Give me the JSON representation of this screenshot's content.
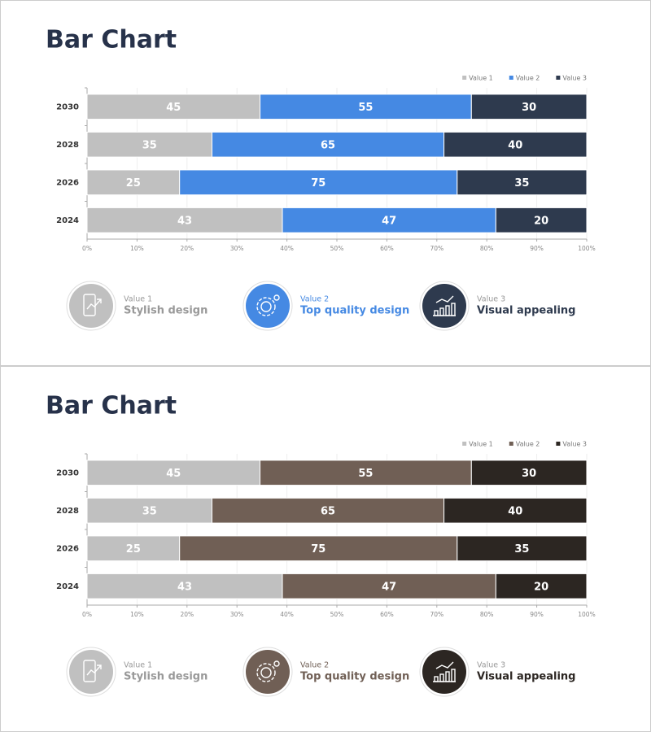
{
  "chart_data": [
    {
      "type": "bar",
      "orientation": "horizontal",
      "stacked": "percent",
      "title": "Bar Chart",
      "categories": [
        "2030",
        "2028",
        "2026",
        "2024"
      ],
      "series": [
        {
          "name": "Value 1",
          "color": "#c0c0c0",
          "values": [
            45,
            35,
            25,
            43
          ]
        },
        {
          "name": "Value 2",
          "color": "#4589e3",
          "values": [
            55,
            65,
            75,
            47
          ]
        },
        {
          "name": "Value 3",
          "color": "#2e3a4e",
          "values": [
            30,
            40,
            35,
            20
          ]
        }
      ],
      "xlim": [
        0,
        100
      ],
      "xticks": [
        {
          "value": 0,
          "label": "0%"
        },
        {
          "value": 10,
          "label": "10%"
        },
        {
          "value": 20,
          "label": "20%"
        },
        {
          "value": 30,
          "label": "30%"
        },
        {
          "value": 40,
          "label": "40%"
        },
        {
          "value": 50,
          "label": "50%"
        },
        {
          "value": 60,
          "label": "60%"
        },
        {
          "value": 70,
          "label": "70%"
        },
        {
          "value": 80,
          "label": "80%"
        },
        {
          "value": 90,
          "label": "90%"
        },
        {
          "value": 100,
          "label": "100%"
        }
      ],
      "grid": true,
      "legend": "top-right",
      "features": [
        "Stylish design",
        "Top quality design",
        "Visual appealing"
      ]
    },
    {
      "type": "bar",
      "orientation": "horizontal",
      "stacked": "percent",
      "title": "Bar Chart",
      "categories": [
        "2030",
        "2028",
        "2026",
        "2024"
      ],
      "series": [
        {
          "name": "Value 1",
          "color": "#c0c0c0",
          "values": [
            45,
            35,
            25,
            43
          ]
        },
        {
          "name": "Value 2",
          "color": "#705f55",
          "values": [
            55,
            65,
            75,
            47
          ]
        },
        {
          "name": "Value 3",
          "color": "#2c2622",
          "values": [
            30,
            40,
            35,
            20
          ]
        }
      ],
      "xlim": [
        0,
        100
      ],
      "xticks": [
        {
          "value": 0,
          "label": "0%"
        },
        {
          "value": 10,
          "label": "10%"
        },
        {
          "value": 20,
          "label": "20%"
        },
        {
          "value": 30,
          "label": "30%"
        },
        {
          "value": 40,
          "label": "40%"
        },
        {
          "value": 50,
          "label": "50%"
        },
        {
          "value": 60,
          "label": "60%"
        },
        {
          "value": 70,
          "label": "70%"
        },
        {
          "value": 80,
          "label": "80%"
        },
        {
          "value": 90,
          "label": "90%"
        },
        {
          "value": 100,
          "label": "100%"
        }
      ],
      "grid": true,
      "legend": "top-right",
      "features": [
        "Stylish design",
        "Top quality design",
        "Visual appealing"
      ]
    }
  ]
}
